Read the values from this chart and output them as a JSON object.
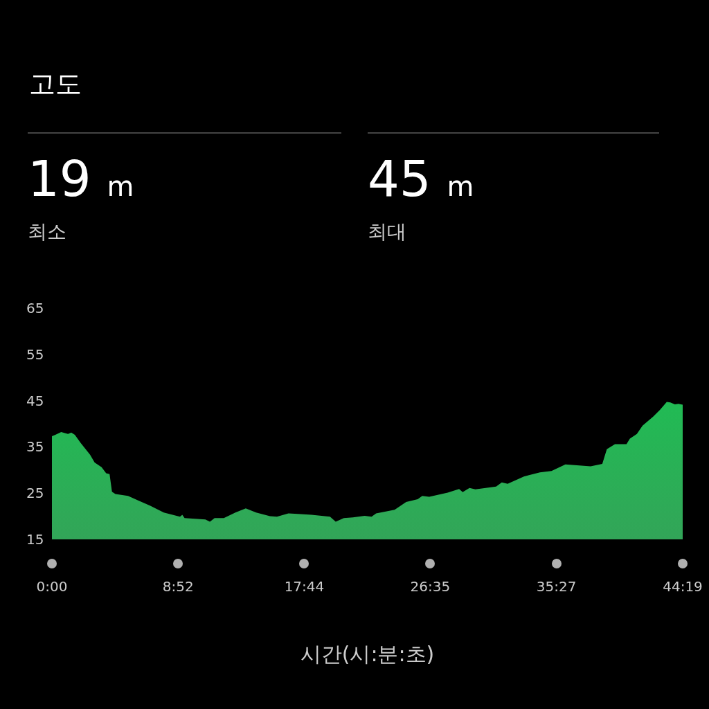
{
  "chart_data": {
    "type": "area",
    "title": "고도",
    "xlabel": "시간(시:분:초)",
    "annotations": [
      "19 m",
      "최소",
      "45 m",
      "최대"
    ],
    "x": [
      0,
      0.24,
      0.65,
      1.13,
      1.36,
      1.61,
      2.03,
      2.68,
      3.0,
      3.49,
      3.81,
      4.05,
      4.22,
      4.46,
      5.35,
      6.08,
      6.89,
      7.86,
      9.0,
      9.16,
      9.32,
      10.78,
      11.1,
      11.43,
      12.08,
      12.89,
      13.62,
      14.35,
      15.32,
      15.81,
      16.62,
      17.27,
      18.24,
      19.54,
      19.94,
      20.51,
      21.0,
      21.97,
      22.46,
      22.78,
      24.08,
      24.89,
      25.7,
      26.02,
      26.51,
      27.81,
      28.61,
      28.86,
      29.34,
      29.75,
      31.21,
      31.61,
      32.02,
      33.16,
      34.29,
      35.1,
      36.08,
      36.88,
      37.85,
      38.67,
      38.99,
      39.56,
      40.37,
      40.61,
      41.1,
      41.5,
      42.23,
      42.72,
      43.2,
      43.45,
      43.77,
      44.02,
      44.32
    ],
    "series": [
      {
        "color": "#1c9c46",
        "values": [
          37.3,
          37.6,
          38.2,
          37.8,
          38.1,
          37.6,
          35.8,
          33.3,
          31.6,
          30.6,
          29.3,
          29.1,
          25.3,
          24.8,
          24.4,
          23.4,
          22.3,
          20.8,
          19.9,
          20.3,
          19.6,
          19.3,
          18.8,
          19.6,
          19.6,
          20.8,
          21.7,
          20.8,
          20.0,
          19.9,
          20.6,
          20.5,
          20.3,
          19.9,
          18.8,
          19.6,
          19.7,
          20.1,
          19.9,
          20.6,
          21.4,
          23.1,
          23.7,
          24.4,
          24.2,
          25.1,
          25.9,
          25.2,
          26.1,
          25.8,
          26.4,
          27.3,
          27.0,
          28.6,
          29.5,
          29.8,
          31.2,
          31.0,
          30.8,
          31.3,
          34.5,
          35.6,
          35.6,
          36.8,
          37.8,
          39.6,
          41.5,
          43.0,
          44.7,
          44.6,
          44.2,
          44.3,
          44.1
        ]
      }
    ],
    "xlim": [
      0,
      44.32
    ],
    "xticks": [
      {
        "value": 0,
        "label": "0:00"
      },
      {
        "value": 8.87,
        "label": "8:52"
      },
      {
        "value": 17.73,
        "label": "17:44"
      },
      {
        "value": 26.58,
        "label": "26:35"
      },
      {
        "value": 35.45,
        "label": "35:27"
      },
      {
        "value": 44.32,
        "label": "44:19"
      }
    ],
    "ylim": [
      15,
      65
    ],
    "yticks": [
      15,
      25,
      35,
      45,
      55,
      65
    ],
    "grid": false,
    "marker": "none"
  }
}
